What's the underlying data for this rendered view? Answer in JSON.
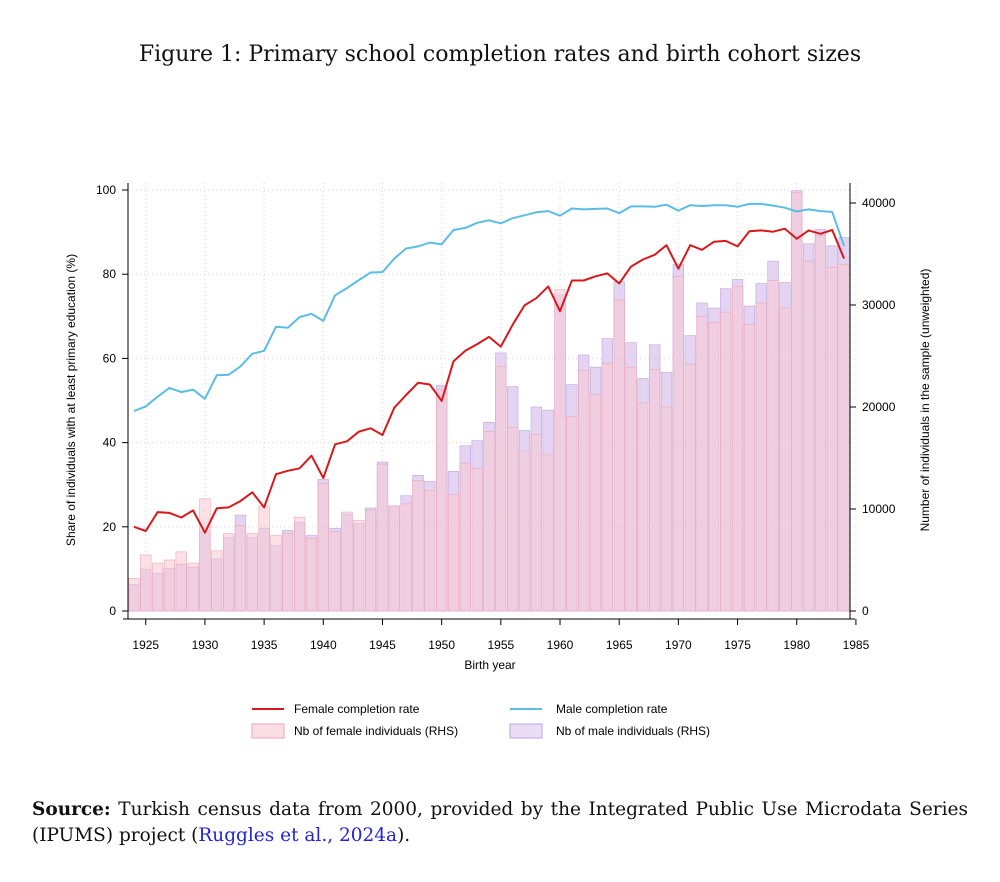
{
  "figure_title": "Figure 1: Primary school completion rates and birth cohort sizes",
  "source": {
    "label": "Source:",
    "text_before": " Turkish census data from 2000, provided by the Integrated Public Use Microdata Series (IPUMS) project (",
    "citation": "Ruggles et al., 2024a",
    "text_after": ")."
  },
  "colors": {
    "female_line": "#d7191c",
    "male_line": "#5bbde3",
    "female_bar_fill": "#f6c9d2",
    "male_bar_fill": "#dcc6ec",
    "overlap_fill": "#e6bde3"
  },
  "chart_data": {
    "type": "bar+line",
    "title": "",
    "xlabel": "Birth year",
    "ylabel_left": "Share of individuals with at least primary education (%)",
    "ylabel_right": "Number of individuals in the sample (unweighted)",
    "ylim_left": [
      0,
      100
    ],
    "ylim_right": [
      0,
      40000
    ],
    "xlim": [
      1923.5,
      1984.5
    ],
    "x_ticks": [
      "1925",
      "1930",
      "1935",
      "1940",
      "1945",
      "1950",
      "1955",
      "1960",
      "1965",
      "1970",
      "1975",
      "1980",
      "1985"
    ],
    "y_ticks_left": [
      "0",
      "20",
      "40",
      "60",
      "80",
      "100"
    ],
    "y_ticks_right": [
      "0",
      "10000",
      "20000",
      "30000",
      "40000"
    ],
    "legend": [
      "Female completion rate",
      "Male completion rate",
      "Nb of female individuals (RHS)",
      "Nb of male individuals (RHS)"
    ],
    "legend_position": "bottom",
    "grid": true,
    "years": [
      1924,
      1925,
      1926,
      1927,
      1928,
      1929,
      1930,
      1931,
      1932,
      1933,
      1934,
      1935,
      1936,
      1937,
      1938,
      1939,
      1940,
      1941,
      1942,
      1943,
      1944,
      1945,
      1946,
      1947,
      1948,
      1949,
      1950,
      1951,
      1952,
      1953,
      1954,
      1955,
      1956,
      1957,
      1958,
      1959,
      1960,
      1961,
      1962,
      1963,
      1964,
      1965,
      1966,
      1967,
      1968,
      1969,
      1970,
      1971,
      1972,
      1973,
      1974,
      1975,
      1976,
      1977,
      1978,
      1979,
      1980,
      1981,
      1982,
      1983,
      1984
    ],
    "series": [
      {
        "name": "Female completion rate",
        "axis": "left",
        "type": "line",
        "values": [
          20,
          19,
          23.5,
          23.3,
          22.2,
          23.9,
          18.6,
          24.4,
          24.6,
          26.1,
          28.2,
          24.6,
          32.5,
          33.3,
          33.9,
          36.9,
          31.6,
          39.6,
          40.3,
          42.6,
          43.4,
          41.8,
          48.3,
          51.3,
          54.2,
          53.8,
          49.9,
          59.3,
          61.8,
          63.4,
          65.1,
          62.8,
          68,
          72.6,
          74.3,
          77.1,
          71.2,
          78.5,
          78.5,
          79.5,
          80.2,
          77.8,
          81.8,
          83.5,
          84.6,
          86.9,
          81.3,
          86.9,
          85.8,
          87.7,
          87.9,
          86.6,
          90.2,
          90.4,
          90.1,
          90.8,
          88.4,
          90.4,
          89.6,
          90.5,
          83.7
        ]
      },
      {
        "name": "Male completion rate",
        "axis": "left",
        "type": "line",
        "values": [
          47.5,
          48.6,
          50.9,
          53,
          52,
          52.6,
          50.4,
          56,
          56.1,
          58.1,
          61.1,
          61.8,
          67.5,
          67.3,
          69.8,
          70.6,
          68.9,
          75,
          76.7,
          78.6,
          80.4,
          80.5,
          83.7,
          86.1,
          86.6,
          87.5,
          87.1,
          90.5,
          91,
          92.2,
          92.8,
          92.1,
          93.3,
          94,
          94.7,
          95,
          93.9,
          95.6,
          95.4,
          95.5,
          95.6,
          94.5,
          96.1,
          96.1,
          96,
          96.5,
          95.1,
          96.4,
          96.2,
          96.4,
          96.4,
          96,
          96.7,
          96.7,
          96.3,
          95.8,
          94.9,
          95.4,
          95,
          94.8,
          86.7
        ]
      },
      {
        "name": "Nb of female individuals (RHS)",
        "axis": "right",
        "type": "bar",
        "values": [
          3200,
          5500,
          4700,
          5000,
          5800,
          4700,
          11000,
          5900,
          7600,
          8400,
          7600,
          10300,
          7400,
          7600,
          9200,
          7100,
          12500,
          7800,
          9700,
          8900,
          9900,
          14400,
          10300,
          10500,
          12800,
          11800,
          21700,
          11400,
          14500,
          14000,
          17600,
          24000,
          18000,
          15700,
          17300,
          15300,
          31500,
          19100,
          23600,
          21200,
          24300,
          30500,
          23900,
          20400,
          23700,
          20000,
          32800,
          24200,
          28900,
          28300,
          29300,
          31800,
          28100,
          30200,
          32400,
          29700,
          41000,
          34300,
          36800,
          33700,
          34000
        ]
      },
      {
        "name": "Nb of male individuals (RHS)",
        "axis": "right",
        "type": "bar",
        "values": [
          2600,
          4100,
          3700,
          4200,
          4600,
          4300,
          7800,
          5100,
          7200,
          9400,
          7200,
          8100,
          6400,
          7900,
          8700,
          7400,
          12900,
          8100,
          9500,
          8600,
          10100,
          14600,
          10300,
          11300,
          13300,
          12700,
          22100,
          13700,
          16200,
          16700,
          18500,
          25300,
          22000,
          17700,
          20000,
          19700,
          31000,
          22200,
          25100,
          23900,
          26700,
          32300,
          26300,
          22800,
          26100,
          23400,
          34000,
          27000,
          30200,
          29700,
          31600,
          32500,
          29900,
          32100,
          34300,
          32200,
          41200,
          36000,
          37400,
          35800,
          36600
        ]
      }
    ]
  }
}
